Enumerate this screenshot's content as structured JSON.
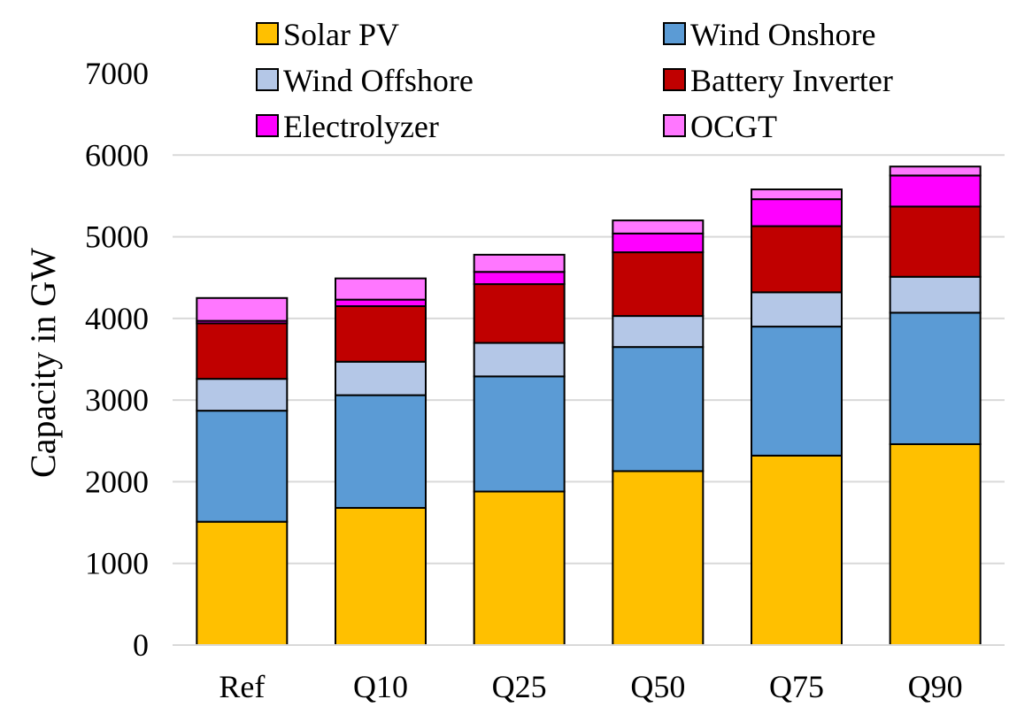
{
  "chart_data": {
    "type": "bar",
    "stacked": true,
    "title": "",
    "xlabel": "",
    "ylabel": "Capacity in GW",
    "ylim": [
      0,
      7000
    ],
    "yticks": [
      0,
      1000,
      2000,
      3000,
      4000,
      5000,
      6000,
      7000
    ],
    "grid": true,
    "legend": {
      "placement": "top",
      "columns": 2
    },
    "categories": [
      "Ref",
      "Q10",
      "Q25",
      "Q50",
      "Q75",
      "Q90"
    ],
    "series": [
      {
        "name": "Solar PV",
        "color": "#FFC000",
        "values": [
          1510,
          1680,
          1880,
          2130,
          2320,
          2460
        ]
      },
      {
        "name": "Wind Onshore",
        "color": "#5B9BD5",
        "values": [
          1360,
          1380,
          1410,
          1520,
          1580,
          1610
        ]
      },
      {
        "name": "Wind Offshore",
        "color": "#B4C7E7",
        "values": [
          390,
          410,
          410,
          380,
          420,
          440
        ]
      },
      {
        "name": "Battery Inverter",
        "color": "#C00000",
        "values": [
          680,
          680,
          720,
          780,
          810,
          860
        ]
      },
      {
        "name": "Electrolyzer",
        "color": "#FF00FF",
        "values": [
          30,
          80,
          150,
          230,
          330,
          380
        ]
      },
      {
        "name": "OCGT",
        "color": "#FF77FF",
        "values": [
          280,
          260,
          210,
          160,
          120,
          110
        ]
      }
    ]
  }
}
